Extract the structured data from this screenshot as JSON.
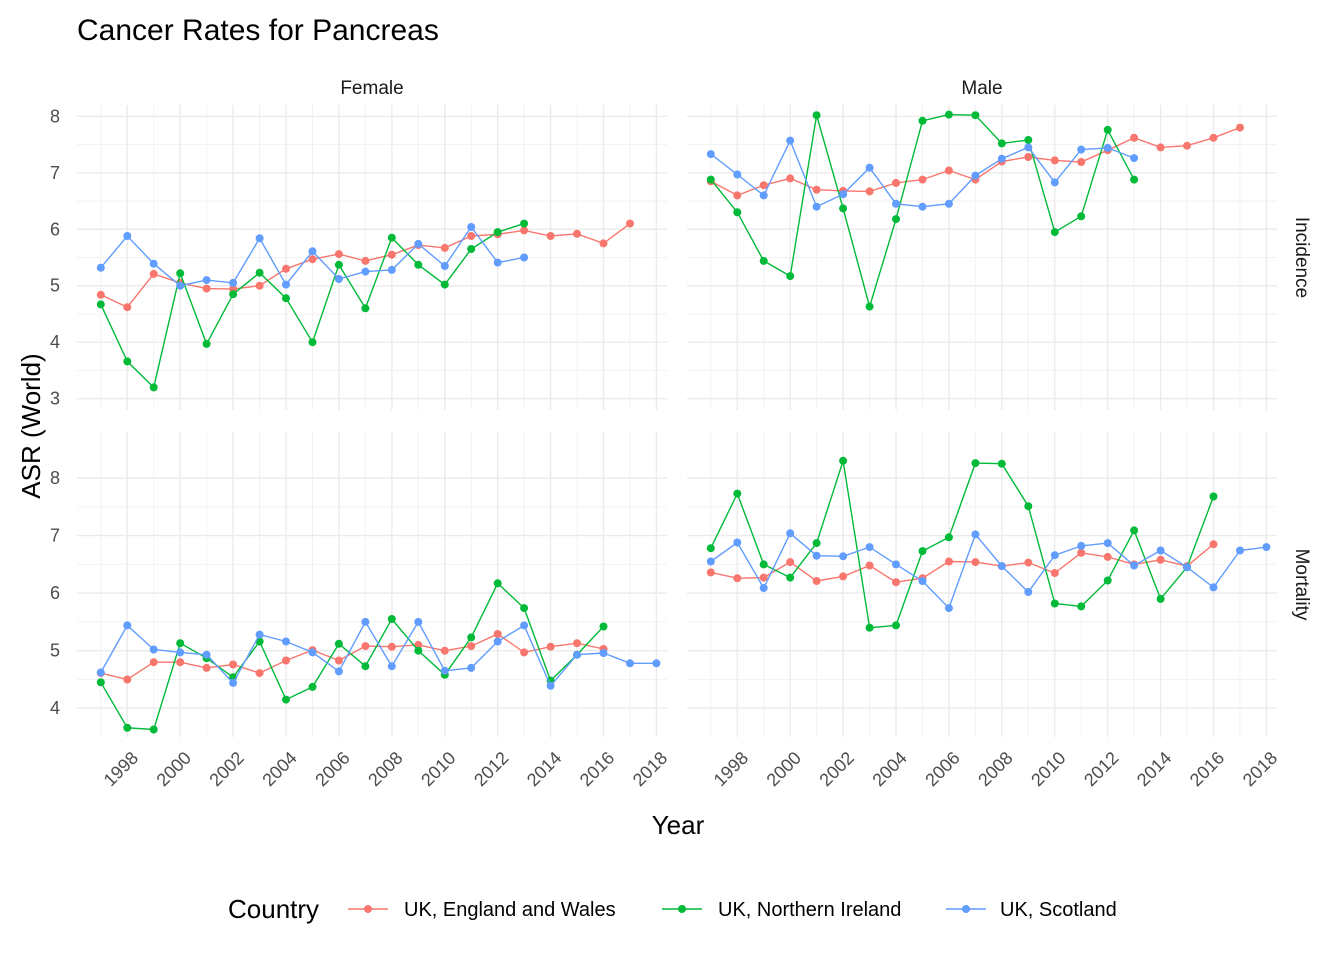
{
  "chart_data": {
    "type": "line",
    "title": "Cancer Rates for Pancreas",
    "xlabel": "Year",
    "ylabel": "ASR (World)",
    "grid": true,
    "legend_placement": "bottom",
    "legend_title": "Country",
    "facet_columns": [
      "Female",
      "Male"
    ],
    "facet_rows": [
      "Incidence",
      "Mortality"
    ],
    "x_ticks": [
      "1998",
      "2000",
      "2002",
      "2004",
      "2006",
      "2008",
      "2010",
      "2012",
      "2014",
      "2016",
      "2018"
    ],
    "xlim": [
      1996.1,
      2018.4
    ],
    "row_ylims": [
      [
        2.8,
        8.2
      ],
      [
        3.5,
        8.8
      ]
    ],
    "row_yticks": [
      [
        "3",
        "4",
        "5",
        "6",
        "7",
        "8"
      ],
      [
        "4",
        "5",
        "6",
        "7",
        "8"
      ]
    ],
    "series_meta": [
      {
        "name": "UK, England and Wales",
        "color": "#F8766D"
      },
      {
        "name": "UK, Northern Ireland",
        "color": "#00BA38"
      },
      {
        "name": "UK, Scotland",
        "color": "#619CFF"
      }
    ],
    "panels": [
      {
        "facet_column": "Female",
        "facet_row": "Incidence",
        "series": [
          {
            "x": [
              1997,
              1998,
              1999,
              2000,
              2001,
              2002,
              2003,
              2004,
              2005,
              2006,
              2007,
              2008,
              2009,
              2010,
              2011,
              2012,
              2013,
              2014,
              2015,
              2016,
              2017
            ],
            "y": [
              4.84,
              4.62,
              5.21,
              5.05,
              4.95,
              4.94,
              5.0,
              5.3,
              5.47,
              5.56,
              5.44,
              5.55,
              5.72,
              5.67,
              5.88,
              5.91,
              5.98,
              5.88,
              5.92,
              5.75,
              6.1
            ]
          },
          {
            "x": [
              1997,
              1998,
              1999,
              2000,
              2001,
              2002,
              2003,
              2004,
              2005,
              2006,
              2007,
              2008,
              2009,
              2010,
              2011,
              2012,
              2013
            ],
            "y": [
              4.67,
              3.66,
              3.2,
              5.22,
              3.97,
              4.85,
              5.23,
              4.78,
              4.0,
              5.37,
              4.6,
              5.85,
              5.37,
              5.02,
              5.65,
              5.95,
              6.1
            ]
          },
          {
            "x": [
              1997,
              1998,
              1999,
              2000,
              2001,
              2002,
              2003,
              2004,
              2005,
              2006,
              2007,
              2008,
              2009,
              2010,
              2011,
              2012,
              2013
            ],
            "y": [
              5.32,
              5.88,
              5.39,
              5.0,
              5.1,
              5.05,
              5.84,
              5.02,
              5.61,
              5.12,
              5.25,
              5.28,
              5.74,
              5.35,
              6.04,
              5.41,
              5.5
            ]
          }
        ]
      },
      {
        "facet_column": "Male",
        "facet_row": "Incidence",
        "series": [
          {
            "x": [
              1997,
              1998,
              1999,
              2000,
              2001,
              2002,
              2003,
              2004,
              2005,
              2006,
              2007,
              2008,
              2009,
              2010,
              2011,
              2012,
              2013,
              2014,
              2015,
              2016,
              2017
            ],
            "y": [
              6.85,
              6.6,
              6.78,
              6.9,
              6.7,
              6.68,
              6.67,
              6.82,
              6.88,
              7.04,
              6.88,
              7.2,
              7.28,
              7.22,
              7.19,
              7.4,
              7.62,
              7.45,
              7.48,
              7.62,
              7.8
            ]
          },
          {
            "x": [
              1997,
              1998,
              1999,
              2000,
              2001,
              2002,
              2003,
              2004,
              2005,
              2006,
              2007,
              2008,
              2009,
              2010,
              2011,
              2012,
              2013
            ],
            "y": [
              6.88,
              6.3,
              5.44,
              5.17,
              8.02,
              6.37,
              4.63,
              6.18,
              7.92,
              8.03,
              8.02,
              7.52,
              7.58,
              5.95,
              6.23,
              7.76,
              6.88
            ]
          },
          {
            "x": [
              1997,
              1998,
              1999,
              2000,
              2001,
              2002,
              2003,
              2004,
              2005,
              2006,
              2007,
              2008,
              2009,
              2010,
              2011,
              2012,
              2013
            ],
            "y": [
              7.33,
              6.97,
              6.6,
              7.57,
              6.4,
              6.62,
              7.09,
              6.45,
              6.4,
              6.45,
              6.95,
              7.25,
              7.45,
              6.83,
              7.41,
              7.44,
              7.26
            ]
          }
        ]
      },
      {
        "facet_column": "Female",
        "facet_row": "Mortality",
        "series": [
          {
            "x": [
              1997,
              1998,
              1999,
              2000,
              2001,
              2002,
              2003,
              2004,
              2005,
              2006,
              2007,
              2008,
              2009,
              2010,
              2011,
              2012,
              2013,
              2014,
              2015,
              2016
            ],
            "y": [
              4.61,
              4.5,
              4.8,
              4.8,
              4.7,
              4.76,
              4.61,
              4.83,
              5.01,
              4.83,
              5.08,
              5.07,
              5.1,
              5.0,
              5.08,
              5.29,
              4.97,
              5.07,
              5.13,
              5.03
            ]
          },
          {
            "x": [
              1997,
              1998,
              1999,
              2000,
              2001,
              2002,
              2003,
              2004,
              2005,
              2006,
              2007,
              2008,
              2009,
              2010,
              2011,
              2012,
              2013,
              2014,
              2015,
              2016
            ],
            "y": [
              4.45,
              3.66,
              3.63,
              5.13,
              4.87,
              4.54,
              5.16,
              4.15,
              4.37,
              5.12,
              4.73,
              5.55,
              5.0,
              4.58,
              5.23,
              6.17,
              5.74,
              4.48,
              4.93,
              5.42
            ]
          },
          {
            "x": [
              1997,
              1998,
              1999,
              2000,
              2001,
              2002,
              2003,
              2004,
              2005,
              2006,
              2007,
              2008,
              2009,
              2010,
              2011,
              2012,
              2013,
              2014,
              2015,
              2016,
              2017,
              2018
            ],
            "y": [
              4.62,
              5.44,
              5.02,
              4.97,
              4.93,
              4.44,
              5.28,
              5.16,
              4.97,
              4.64,
              5.5,
              4.73,
              5.5,
              4.65,
              4.7,
              5.16,
              5.44,
              4.39,
              4.93,
              4.96,
              4.78,
              4.78
            ]
          }
        ]
      },
      {
        "facet_column": "Male",
        "facet_row": "Mortality",
        "series": [
          {
            "x": [
              1997,
              1998,
              1999,
              2000,
              2001,
              2002,
              2003,
              2004,
              2005,
              2006,
              2007,
              2008,
              2009,
              2010,
              2011,
              2012,
              2013,
              2014,
              2015,
              2016
            ],
            "y": [
              6.36,
              6.26,
              6.27,
              6.54,
              6.21,
              6.29,
              6.48,
              6.19,
              6.26,
              6.55,
              6.54,
              6.47,
              6.53,
              6.35,
              6.7,
              6.63,
              6.5,
              6.58,
              6.47,
              6.85
            ]
          },
          {
            "x": [
              1997,
              1998,
              1999,
              2000,
              2001,
              2002,
              2003,
              2004,
              2005,
              2006,
              2007,
              2008,
              2009,
              2010,
              2011,
              2012,
              2013,
              2014,
              2015,
              2016
            ],
            "y": [
              6.78,
              7.73,
              6.5,
              6.27,
              6.87,
              8.3,
              5.4,
              5.44,
              6.73,
              6.97,
              8.26,
              8.25,
              7.51,
              5.82,
              5.77,
              6.22,
              7.09,
              5.9,
              6.45,
              7.68
            ]
          },
          {
            "x": [
              1997,
              1998,
              1999,
              2000,
              2001,
              2002,
              2003,
              2004,
              2005,
              2006,
              2007,
              2008,
              2009,
              2010,
              2011,
              2012,
              2013,
              2014,
              2015,
              2016,
              2017,
              2018
            ],
            "y": [
              6.55,
              6.88,
              6.09,
              7.04,
              6.65,
              6.64,
              6.8,
              6.5,
              6.21,
              5.74,
              7.02,
              6.47,
              6.02,
              6.66,
              6.82,
              6.87,
              6.48,
              6.74,
              6.45,
              6.1,
              6.74,
              6.8
            ]
          }
        ]
      }
    ]
  }
}
